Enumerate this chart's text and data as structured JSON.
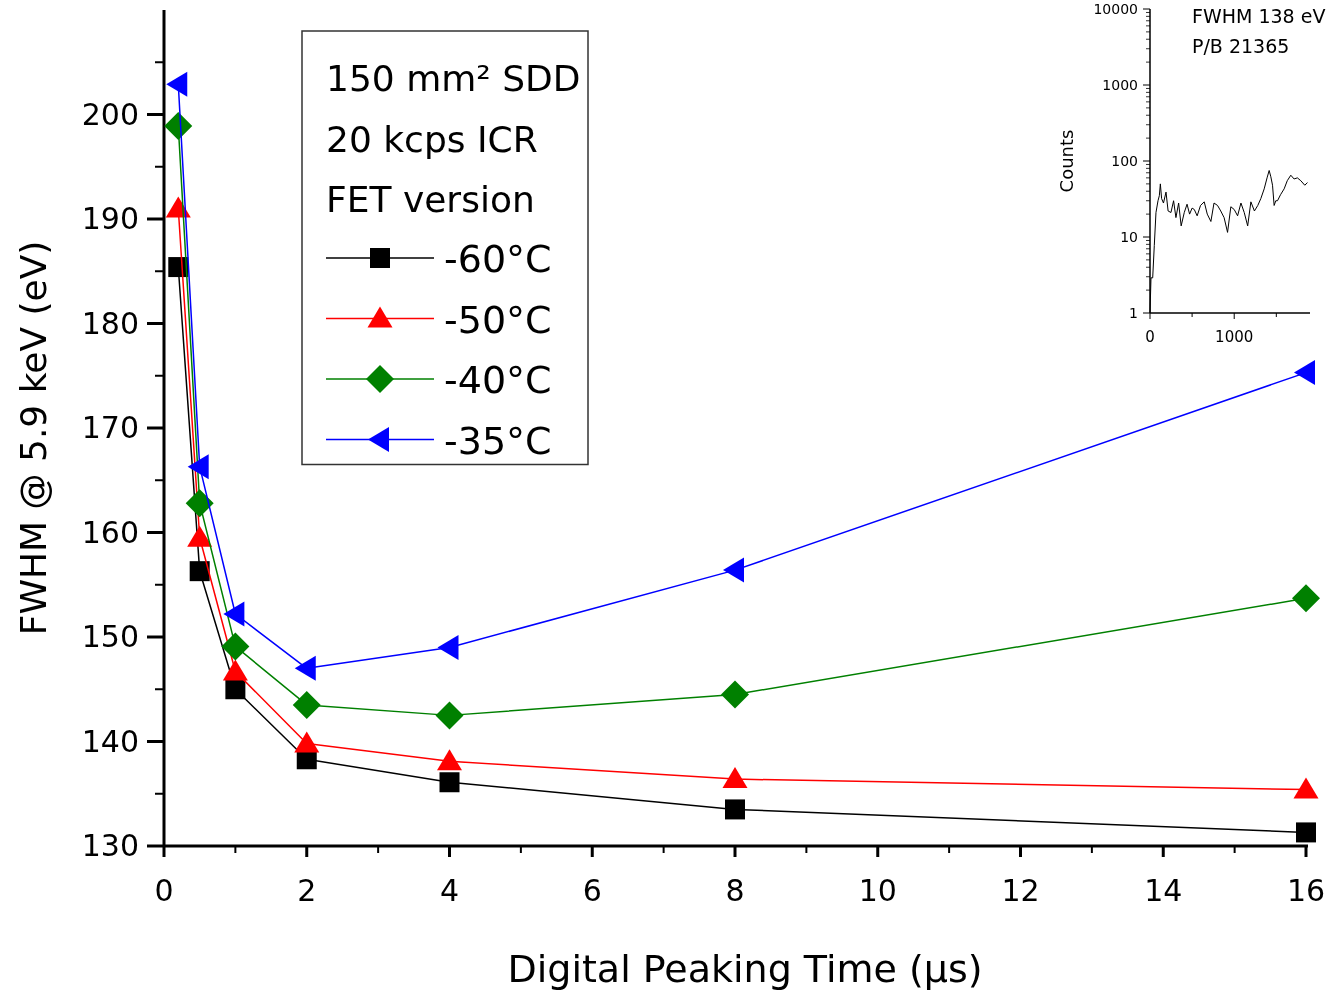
{
  "chart_data": [
    {
      "type": "line",
      "xlabel": "Digital Peaking Time (µs)",
      "ylabel": "FWHM @ 5.9 keV (eV)",
      "legend_title": "150 mm² SDD\n20 kcps ICR\nFET version",
      "legend": "top left",
      "x": [
        0.2,
        0.5,
        1,
        2,
        4,
        8,
        16
      ],
      "xlim": [
        0,
        16
      ],
      "xticks": [
        0,
        2,
        4,
        6,
        8,
        10,
        12,
        14,
        16
      ],
      "ylim": [
        130,
        210
      ],
      "yticks": [
        130,
        140,
        150,
        160,
        170,
        180,
        190,
        200
      ],
      "grid": false,
      "line_style": "solid",
      "series": [
        {
          "name": "-60°C",
          "color": "#000000",
          "marker": "square",
          "values": [
            185.4,
            156.3,
            145.0,
            138.3,
            136.1,
            133.5,
            131.3
          ]
        },
        {
          "name": "-50°C",
          "color": "#ff0000",
          "marker": "triangle",
          "values": [
            191.0,
            159.5,
            146.7,
            139.8,
            138.1,
            136.4,
            135.4
          ]
        },
        {
          "name": "-40°C",
          "color": "#008000",
          "marker": "diamond",
          "values": [
            198.9,
            162.8,
            149.1,
            143.5,
            142.5,
            144.5,
            153.7
          ]
        },
        {
          "name": "-35°C",
          "color": "#0000ff",
          "marker": "triangle-left",
          "values": [
            202.9,
            166.3,
            152.2,
            147.0,
            149.0,
            156.4,
            175.3
          ]
        }
      ]
    },
    {
      "type": "line",
      "ylabel": "Counts",
      "log": "y",
      "annotations": [
        "FWHM 138 eV",
        "P/B 21365"
      ],
      "xlim": [
        0,
        1900
      ],
      "xticks": [
        0,
        {
          "value": 500,
          "label": null
        },
        1000,
        {
          "value": 1500,
          "label": null
        }
      ],
      "ylim": [
        1,
        10000
      ],
      "yticks": [
        1,
        10,
        100,
        1000,
        10000
      ],
      "series": [
        {
          "color": "#000000",
          "x": [
            0,
            12,
            32,
            51,
            71,
            95,
            111,
            123,
            138,
            160,
            190,
            215,
            249,
            280,
            308,
            340,
            370,
            407,
            440,
            470,
            500,
            526,
            560,
            600,
            644,
            680,
            723,
            760,
            802,
            840,
            880,
            921,
            960,
            1000,
            1040,
            1080,
            1119,
            1160,
            1198,
            1240,
            1280,
            1316,
            1356,
            1390,
            1415,
            1435,
            1455,
            1474,
            1494,
            1514,
            1550,
            1593,
            1630,
            1672,
            1711,
            1750,
            1791,
            1838,
            1870
          ],
          "values": [
            1,
            2.9,
            2.9,
            7.7,
            21,
            30,
            35,
            50,
            32,
            28,
            39,
            22,
            21,
            30,
            18,
            28,
            14,
            21,
            27,
            20,
            24,
            23,
            19,
            26,
            29,
            20,
            16,
            28,
            26,
            22,
            18,
            11.5,
            25,
            23,
            19,
            28,
            21,
            14,
            29,
            22,
            26,
            32,
            43,
            60,
            75,
            62,
            48,
            26,
            30,
            30,
            36,
            43,
            55,
            65,
            58,
            60,
            55,
            48,
            52
          ]
        }
      ]
    }
  ]
}
